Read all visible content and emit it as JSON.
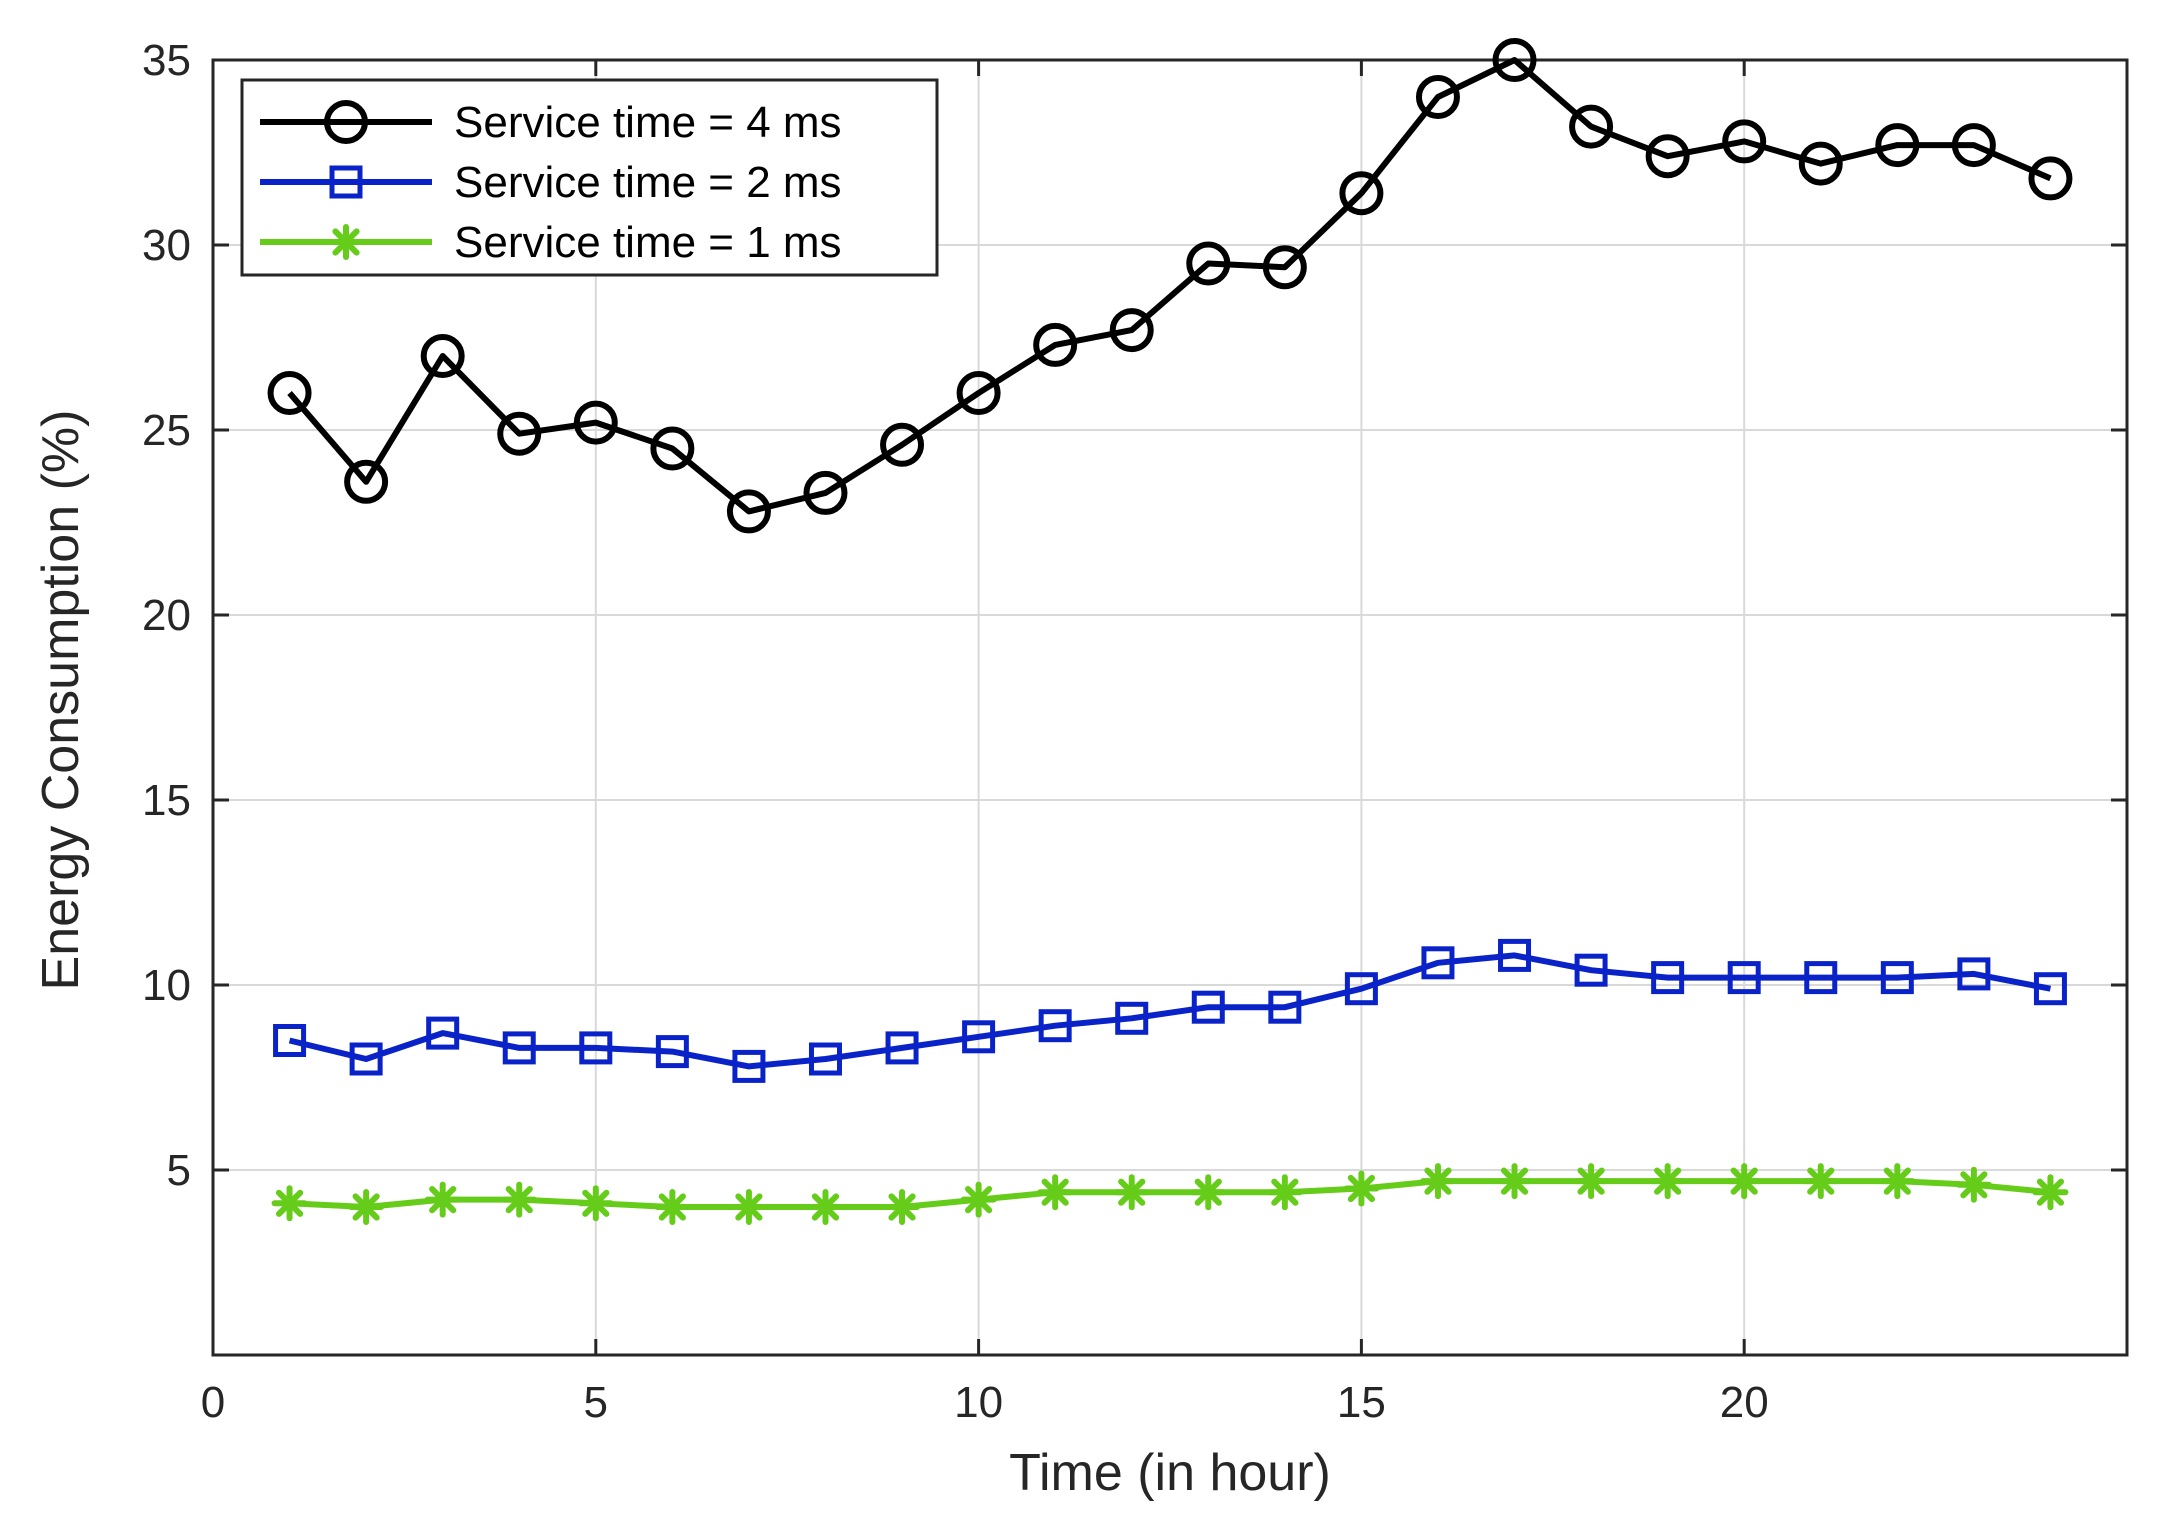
{
  "chart_data": {
    "type": "line",
    "title": "",
    "xlabel": "Time (in hour)",
    "ylabel": "Energy Consumption (%)",
    "xlim": [
      0,
      25
    ],
    "ylim": [
      0,
      35
    ],
    "xticks": [
      0,
      5,
      10,
      15,
      20
    ],
    "yticks": [
      5,
      10,
      15,
      20,
      25,
      30,
      35
    ],
    "grid": true,
    "legend_position": "top-left",
    "x": [
      1,
      2,
      3,
      4,
      5,
      6,
      7,
      8,
      9,
      10,
      11,
      12,
      13,
      14,
      15,
      16,
      17,
      18,
      19,
      20,
      21,
      22,
      23,
      24
    ],
    "series": [
      {
        "name": "Service time = 4 ms",
        "color": "#000000",
        "marker": "circle",
        "values": [
          26.0,
          23.6,
          27.0,
          24.9,
          25.2,
          24.5,
          22.8,
          23.3,
          24.6,
          26.0,
          27.3,
          27.7,
          29.5,
          29.4,
          31.4,
          34.0,
          35.0,
          33.2,
          32.4,
          32.8,
          32.2,
          32.7,
          32.7,
          31.8
        ]
      },
      {
        "name": "Service time = 2 ms",
        "color": "#0a23c8",
        "marker": "square",
        "values": [
          8.5,
          8.0,
          8.7,
          8.3,
          8.3,
          8.2,
          7.8,
          8.0,
          8.3,
          8.6,
          8.9,
          9.1,
          9.4,
          9.4,
          9.9,
          10.6,
          10.8,
          10.4,
          10.2,
          10.2,
          10.2,
          10.2,
          10.3,
          9.9
        ]
      },
      {
        "name": "Service time = 1 ms",
        "color": "#66cc1a",
        "marker": "asterisk",
        "values": [
          4.1,
          4.0,
          4.2,
          4.2,
          4.1,
          4.0,
          4.0,
          4.0,
          4.0,
          4.2,
          4.4,
          4.4,
          4.4,
          4.4,
          4.5,
          4.7,
          4.7,
          4.7,
          4.7,
          4.7,
          4.7,
          4.7,
          4.6,
          4.4
        ]
      }
    ]
  }
}
